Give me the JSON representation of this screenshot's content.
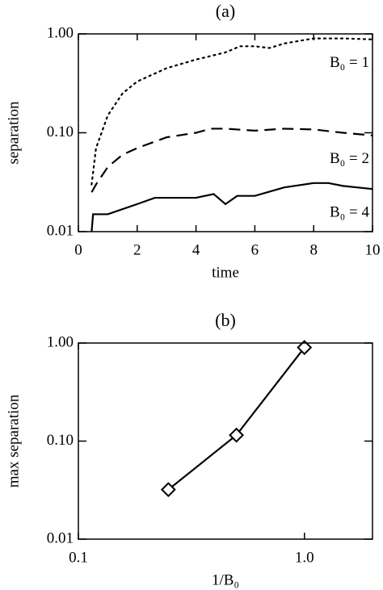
{
  "chart_data": [
    {
      "type": "line",
      "title": "(a)",
      "xlabel": "time",
      "ylabel": "separation",
      "xlim": [
        0,
        10
      ],
      "xticks": [
        0,
        2,
        4,
        6,
        8,
        10
      ],
      "ylim": [
        0.01,
        1
      ],
      "yscale": "log",
      "yticks": [
        {
          "value": 0.01,
          "label": "0.01"
        },
        {
          "value": 0.1,
          "label": "0.10"
        },
        {
          "value": 1,
          "label": "1.00"
        }
      ],
      "series": [
        {
          "name": "B₀ = 1",
          "color": "#000000",
          "dash": "dotted",
          "x": [
            0.45,
            0.6,
            1,
            1.5,
            2,
            3,
            4,
            5,
            5.5,
            6,
            6.5,
            7,
            8,
            9,
            10
          ],
          "values": [
            0.03,
            0.07,
            0.15,
            0.25,
            0.33,
            0.45,
            0.55,
            0.65,
            0.75,
            0.75,
            0.72,
            0.8,
            0.9,
            0.9,
            0.88
          ]
        },
        {
          "name": "B₀ = 2",
          "color": "#000000",
          "dash": "dashed",
          "x": [
            0.45,
            0.6,
            1,
            1.5,
            2,
            3,
            4,
            4.5,
            5,
            6,
            7,
            8,
            9,
            10
          ],
          "values": [
            0.025,
            0.03,
            0.045,
            0.06,
            0.07,
            0.09,
            0.1,
            0.11,
            0.11,
            0.105,
            0.11,
            0.108,
            0.1,
            0.094
          ]
        },
        {
          "name": "B₀ = 4",
          "color": "#000000",
          "dash": "solid",
          "x": [
            0.45,
            0.5,
            1,
            2,
            2.6,
            3,
            4,
            4.6,
            5,
            5.4,
            6,
            7,
            8,
            8.5,
            9,
            10
          ],
          "values": [
            0.01,
            0.015,
            0.015,
            0.019,
            0.022,
            0.022,
            0.022,
            0.024,
            0.019,
            0.023,
            0.023,
            0.028,
            0.031,
            0.031,
            0.029,
            0.027
          ]
        }
      ]
    },
    {
      "type": "line",
      "title": "(b)",
      "xlabel": "1/B₀",
      "ylabel": "max separation",
      "xlim": [
        0.1,
        2
      ],
      "xscale": "log",
      "xticks": [
        0.1,
        {
          "value": 1,
          "label": "1.0"
        }
      ],
      "ylim": [
        0.01,
        1
      ],
      "yscale": "log",
      "yticks": [
        {
          "value": 0.01,
          "label": "0.01"
        },
        {
          "value": 0.1,
          "label": "0.10"
        },
        {
          "value": 1,
          "label": "1.00"
        }
      ],
      "marker": "diamond",
      "series": [
        {
          "color": "#000000",
          "dash": "solid",
          "x": [
            0.25,
            0.5,
            1
          ],
          "values": [
            0.032,
            0.115,
            0.9
          ]
        }
      ]
    }
  ]
}
